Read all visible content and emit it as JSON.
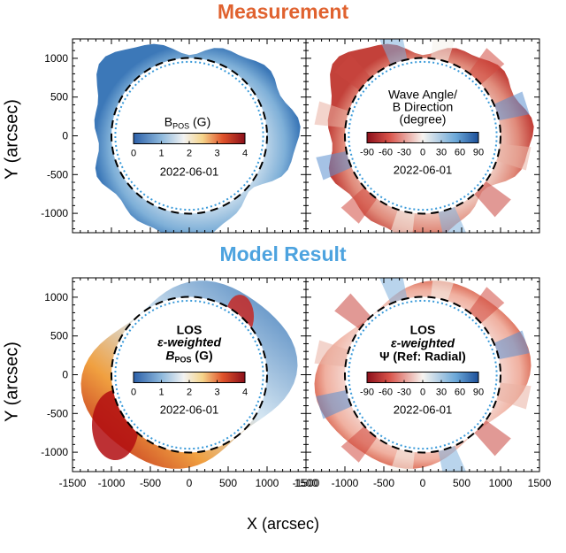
{
  "titles": {
    "measurement": "Measurement",
    "model": "Model Result"
  },
  "axes": {
    "ylabel": "Y (arcsec)",
    "xlabel": "X (arcsec)",
    "yticks": [
      "1000",
      "500",
      "0",
      "-500",
      "-1000"
    ],
    "xticks": [
      "-1500",
      "-1000",
      "-500",
      "0",
      "500",
      "1000",
      "1500"
    ]
  },
  "colors": {
    "measurement_title": "#e0622f",
    "model_title": "#4da3df",
    "occulter_dash": "#000000",
    "sun_limb_dot": "#3a9ad9"
  },
  "chart_data": [
    {
      "type": "heatmap",
      "panel": "top-left",
      "colorbar_label_main": "B",
      "colorbar_label_sub": "POS",
      "colorbar_label_unit": "(G)",
      "colorbar_ticks": [
        "0",
        "1",
        "2",
        "3",
        "4"
      ],
      "colorbar_range": [
        0,
        4
      ],
      "colormap": "blue-white-red",
      "date": "2022-06-01",
      "xlim": [
        -1500,
        1500
      ],
      "ylim": [
        -1250,
        1250
      ]
    },
    {
      "type": "heatmap",
      "panel": "top-right",
      "colorbar_label_lines": [
        "Wave Angle/",
        "B Direction",
        "(degree)"
      ],
      "colorbar_ticks": [
        "-90",
        "-60",
        "-30",
        "0",
        "30",
        "60",
        "90"
      ],
      "colorbar_range": [
        -90,
        90
      ],
      "colormap": "red-white-blue",
      "date": "2022-06-01",
      "xlim": [
        -1500,
        1500
      ],
      "ylim": [
        -1250,
        1250
      ]
    },
    {
      "type": "heatmap",
      "panel": "bottom-left",
      "colorbar_label_lines": [
        "LOS",
        "ε-weighted",
        "B"
      ],
      "colorbar_label_sub": "POS",
      "colorbar_label_unit": "(G)",
      "colorbar_ticks": [
        "0",
        "1",
        "2",
        "3",
        "4"
      ],
      "colorbar_range": [
        0,
        4
      ],
      "colormap": "blue-white-red",
      "date": "2022-06-01",
      "xlim": [
        -1500,
        1500
      ],
      "ylim": [
        -1250,
        1250
      ]
    },
    {
      "type": "heatmap",
      "panel": "bottom-right",
      "colorbar_label_lines": [
        "LOS",
        "ε-weighted",
        "Ψ (Ref: Radial)"
      ],
      "colorbar_ticks": [
        "-90",
        "-60",
        "-30",
        "0",
        "30",
        "60",
        "90"
      ],
      "colorbar_range": [
        -90,
        90
      ],
      "colormap": "red-white-blue",
      "date": "2022-06-01",
      "xlim": [
        -1500,
        1500
      ],
      "ylim": [
        -1250,
        1250
      ]
    }
  ]
}
